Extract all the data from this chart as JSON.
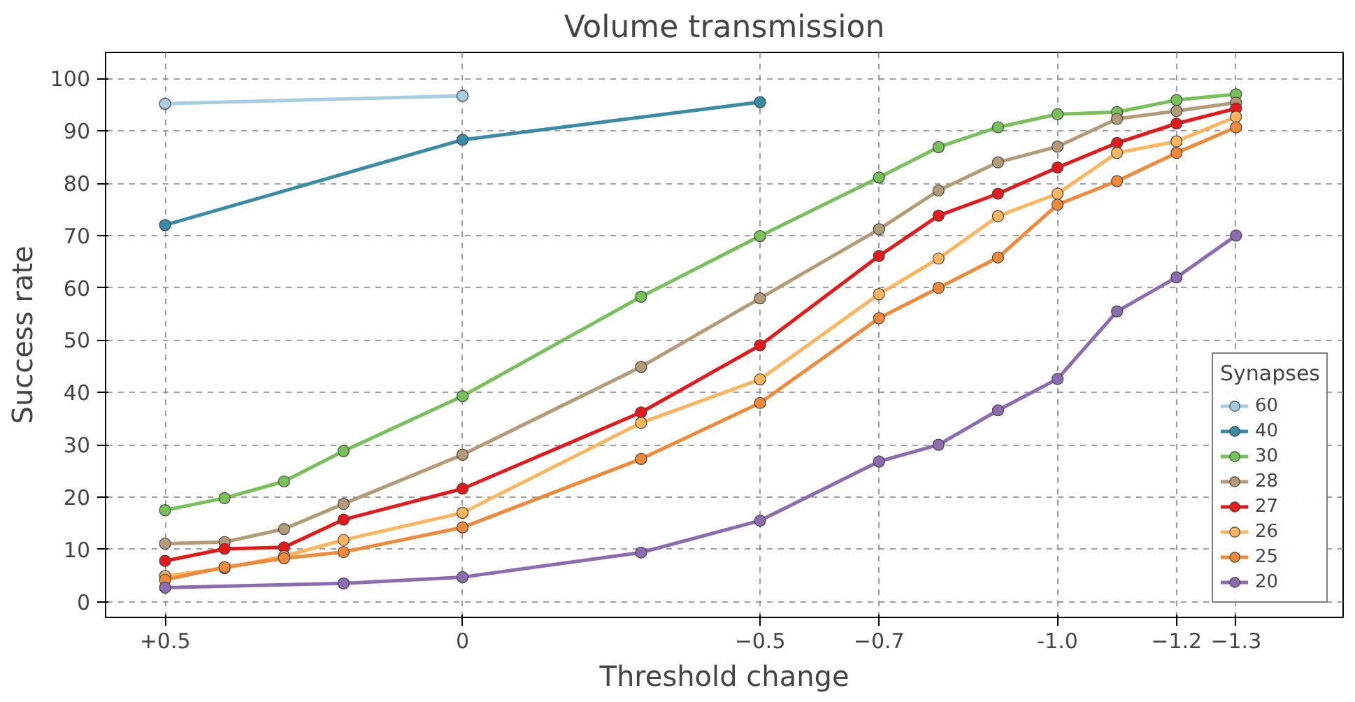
{
  "chart_data": {
    "type": "line",
    "title": "Volume transmission",
    "xlabel": "Threshold change",
    "ylabel": "Success rate",
    "legend_title": "Synapses",
    "x": [
      0.5,
      0.4,
      0.3,
      0.2,
      0,
      -0.3,
      -0.5,
      -0.7,
      -0.8,
      -0.9,
      -1.0,
      -1.1,
      -1.2,
      -1.3
    ],
    "xlim": [
      0.6,
      -1.48
    ],
    "ylim": [
      -3,
      105
    ],
    "xticks": [
      {
        "value": 0.5,
        "label": "+0.5"
      },
      0,
      -0.5,
      -0.7,
      {
        "value": -1.0,
        "label": "-1.0"
      },
      -1.2,
      -1.3
    ],
    "yticks": [
      0,
      10,
      20,
      30,
      40,
      50,
      60,
      70,
      80,
      90,
      100
    ],
    "grid": true,
    "legend": "bottom right",
    "marker": "circle",
    "line_style": "solid",
    "series": [
      {
        "name": "60",
        "color": "#a6cee3",
        "x": [
          0.5,
          0
        ],
        "values": [
          95.2,
          96.7
        ]
      },
      {
        "name": "40",
        "color": "#3a8ca6",
        "x": [
          0.5,
          0,
          -0.5
        ],
        "values": [
          72,
          88.3,
          95.5
        ]
      },
      {
        "name": "30",
        "color": "#77c05a",
        "values": [
          17.5,
          19.8,
          23,
          28.8,
          39.3,
          58.3,
          69.9,
          81.1,
          86.9,
          90.7,
          93.2,
          93.6,
          95.9,
          97
        ]
      },
      {
        "name": "28",
        "color": "#b39b77",
        "values": [
          11.1,
          11.4,
          13.9,
          18.7,
          28.1,
          44.9,
          58,
          71.2,
          78.6,
          84,
          87,
          92.3,
          93.8,
          95.4
        ]
      },
      {
        "name": "27",
        "color": "#e31a1c",
        "values": [
          7.8,
          10.1,
          10.4,
          15.7,
          21.6,
          36.2,
          49,
          66.1,
          73.8,
          78,
          83,
          87.7,
          91.4,
          94.3
        ]
      },
      {
        "name": "26",
        "color": "#fdb55f",
        "values": [
          4.9,
          6.4,
          8.7,
          11.8,
          17,
          34.2,
          42.5,
          58.8,
          65.6,
          73.7,
          78,
          85.8,
          88,
          92.7
        ]
      },
      {
        "name": "25",
        "color": "#f08a3a",
        "values": [
          4.2,
          6.6,
          8.3,
          9.5,
          14.2,
          27.3,
          38,
          54.2,
          60,
          65.8,
          75.9,
          80.4,
          85.8,
          90.7
        ]
      },
      {
        "name": "20",
        "color": "#8c6bb1",
        "x": [
          0.5,
          0.2,
          0,
          -0.3,
          -0.5,
          -0.7,
          -0.8,
          -0.9,
          -1.0,
          -1.1,
          -1.2,
          -1.3
        ],
        "values": [
          2.7,
          3.5,
          4.7,
          9.4,
          15.5,
          26.8,
          30,
          36.6,
          42.6,
          55.5,
          62,
          70
        ]
      }
    ]
  }
}
